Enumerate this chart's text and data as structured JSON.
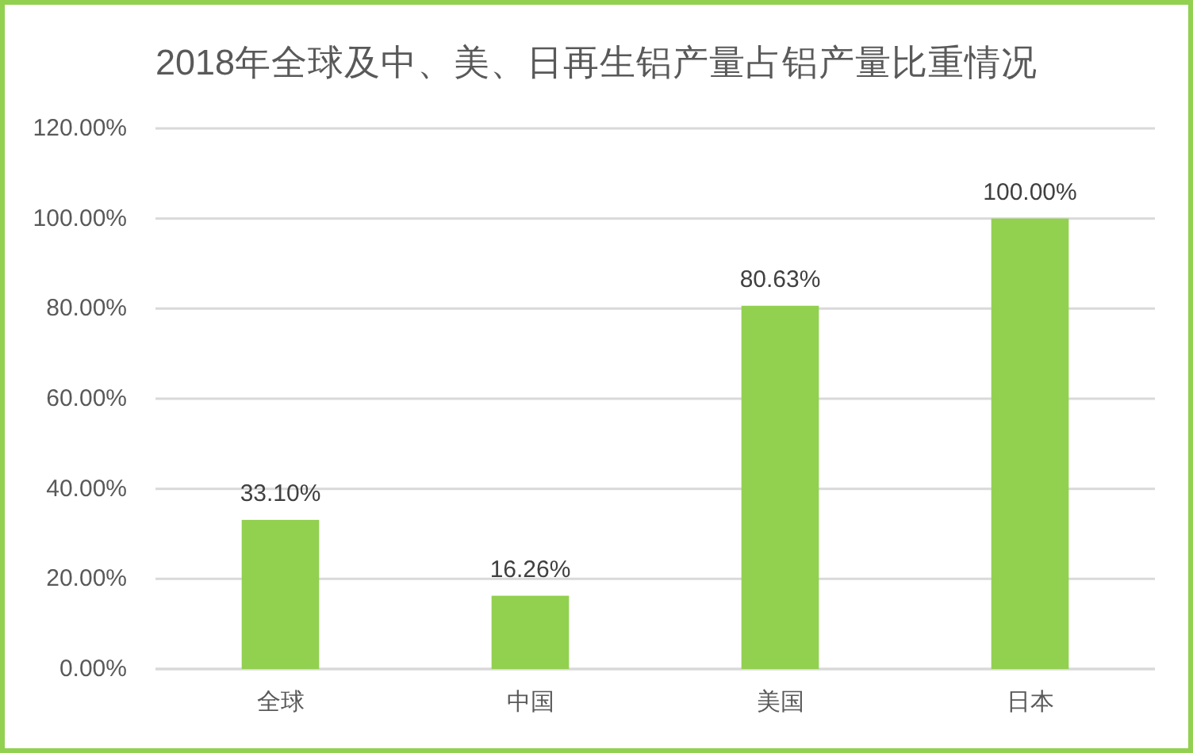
{
  "chart_data": {
    "type": "bar",
    "title": "2018年全球及中、美、日再生铝产量占铝产量比重情况",
    "categories": [
      "全球",
      "中国",
      "美国",
      "日本"
    ],
    "values": [
      33.1,
      16.26,
      80.63,
      100.0
    ],
    "color": "#92d050",
    "ylim": [
      0,
      120
    ],
    "yticks": [
      {
        "value": 0,
        "label": "0.00%"
      },
      {
        "value": 20,
        "label": "20.00%"
      },
      {
        "value": 40,
        "label": "40.00%"
      },
      {
        "value": 60,
        "label": "60.00%"
      },
      {
        "value": 80,
        "label": "80.00%"
      },
      {
        "value": 100,
        "label": "100.00%"
      },
      {
        "value": 120,
        "label": "120.00%"
      }
    ],
    "grid": "y",
    "value_labels": [
      "33.10%",
      "16.26%",
      "80.63%",
      "100.00%"
    ]
  }
}
